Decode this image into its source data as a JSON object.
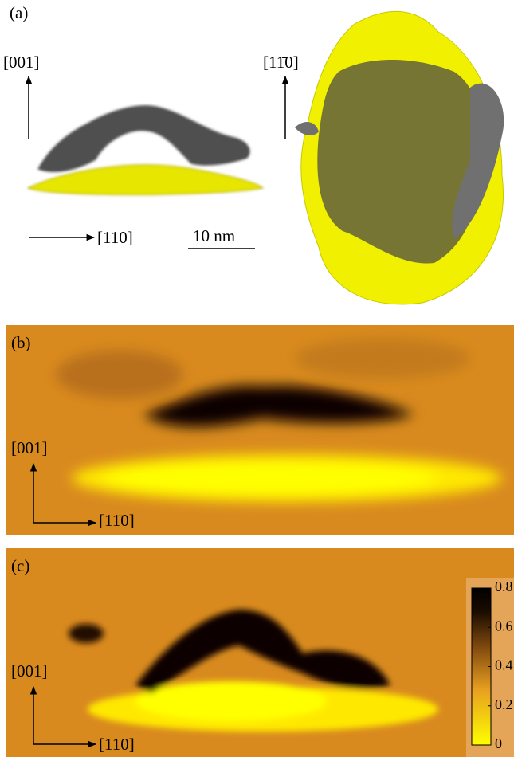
{
  "panel_a": {
    "label": "(a)",
    "left_axis_vertical": "[001]",
    "left_axis_horizontal": "[110]",
    "scale_bar": "10 nm",
    "right_axis_vertical": "[11̄0]"
  },
  "panel_b": {
    "label": "(b)",
    "axis_vertical": "[001]",
    "axis_horizontal": "[11̄0]"
  },
  "panel_c": {
    "label": "(c)",
    "axis_vertical": "[001]",
    "axis_horizontal": "[110]",
    "colorbar": {
      "lim": [
        0,
        0.8
      ],
      "ticks": [
        0,
        0.2,
        0.4,
        0.6,
        0.8
      ]
    }
  }
}
